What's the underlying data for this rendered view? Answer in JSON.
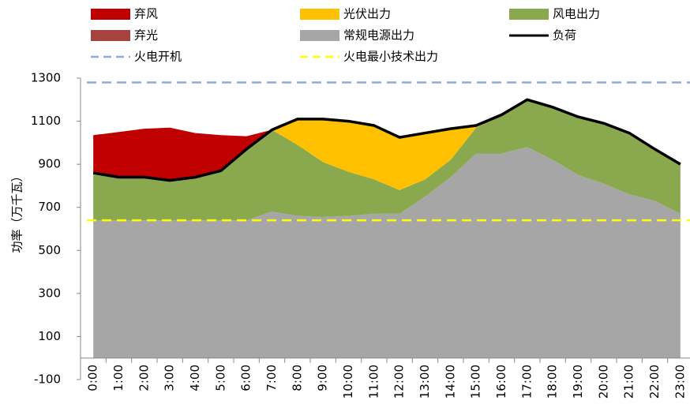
{
  "chart_data": {
    "type": "stacked_area",
    "ylabel": "功率（万千瓦）",
    "categories": [
      "0:00",
      "1:00",
      "2:00",
      "3:00",
      "4:00",
      "5:00",
      "6:00",
      "7:00",
      "8:00",
      "9:00",
      "10:00",
      "11:00",
      "12:00",
      "13:00",
      "14:00",
      "15:00",
      "16:00",
      "17:00",
      "18:00",
      "19:00",
      "20:00",
      "21:00",
      "22:00",
      "23:00"
    ],
    "ylim": [
      -100,
      1300
    ],
    "yticks": [
      -100,
      100,
      300,
      500,
      700,
      900,
      1100,
      1300
    ],
    "series": [
      {
        "name": "常规电源出力",
        "color": "#a6a6a6",
        "values": [
          640,
          640,
          640,
          640,
          640,
          640,
          640,
          680,
          660,
          655,
          660,
          670,
          670,
          750,
          840,
          950,
          950,
          980,
          920,
          850,
          810,
          760,
          730,
          670
        ]
      },
      {
        "name": "风电出力",
        "color": "#8aa94f",
        "values": [
          220,
          200,
          200,
          185,
          200,
          230,
          330,
          380,
          330,
          255,
          205,
          160,
          110,
          80,
          80,
          120,
          180,
          220,
          245,
          270,
          280,
          285,
          240,
          230
        ]
      },
      {
        "name": "光伏出力",
        "color": "#ffc000",
        "values": [
          0,
          0,
          0,
          0,
          0,
          0,
          0,
          0,
          120,
          200,
          235,
          250,
          245,
          215,
          145,
          10,
          0,
          0,
          0,
          0,
          0,
          0,
          0,
          0
        ]
      },
      {
        "name": "弃风",
        "color": "#c00000",
        "values": [
          175,
          210,
          225,
          245,
          205,
          165,
          60,
          0,
          0,
          0,
          0,
          0,
          0,
          0,
          0,
          0,
          0,
          0,
          0,
          0,
          0,
          0,
          0,
          0
        ]
      },
      {
        "name": "弃光",
        "color": "#a5443f",
        "values": [
          0,
          0,
          0,
          0,
          0,
          0,
          0,
          0,
          0,
          0,
          0,
          0,
          0,
          0,
          0,
          0,
          0,
          0,
          0,
          0,
          0,
          0,
          0,
          0
        ]
      }
    ],
    "load": {
      "name": "负荷",
      "color": "#000000",
      "values": [
        860,
        840,
        840,
        825,
        840,
        870,
        970,
        1060,
        1110,
        1110,
        1100,
        1080,
        1025,
        1045,
        1065,
        1080,
        1130,
        1200,
        1165,
        1120,
        1090,
        1045,
        970,
        900
      ]
    },
    "reference_lines": [
      {
        "name": "火电开机",
        "color": "#8eaad8",
        "value": 1280
      },
      {
        "name": "火电最小技术出力",
        "color": "#ffff00",
        "value": 640
      }
    ]
  }
}
